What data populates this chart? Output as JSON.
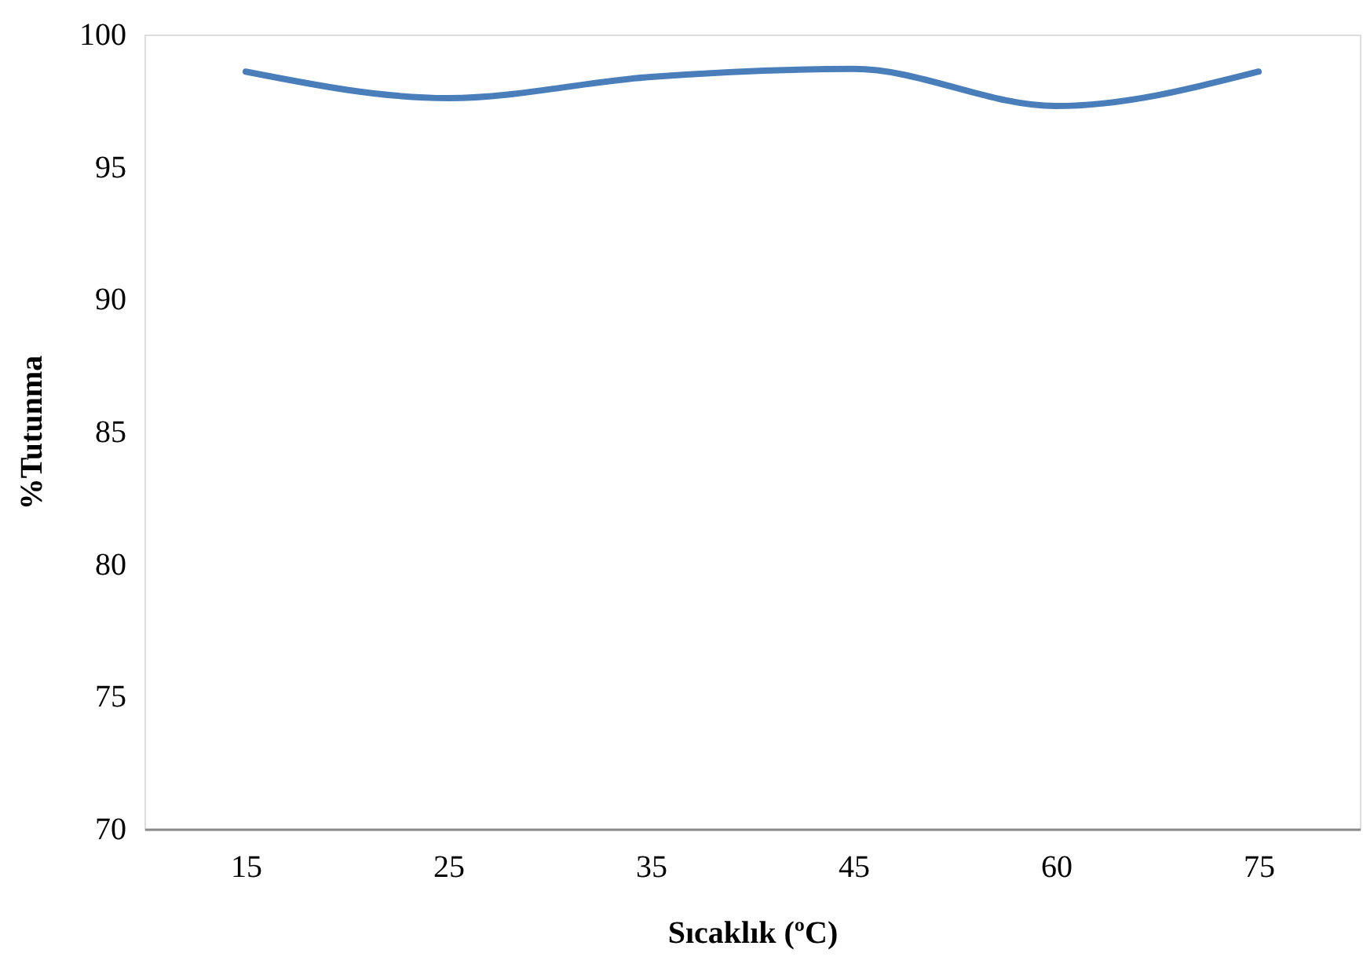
{
  "chart_data": {
    "type": "line",
    "xlabel": "Sıcaklık (ºC)",
    "ylabel": "%Tutunma",
    "categories": [
      "15",
      "25",
      "35",
      "45",
      "60",
      "75"
    ],
    "series": [
      {
        "color": "#4a7ebb",
        "values": [
          98.6,
          97.6,
          98.4,
          98.7,
          97.3,
          98.6
        ]
      }
    ],
    "ylim": [
      70,
      100
    ],
    "yticks": [
      70,
      75,
      80,
      85,
      90,
      95,
      100
    ],
    "grid": false,
    "marker": "none",
    "line_style": "solid"
  }
}
